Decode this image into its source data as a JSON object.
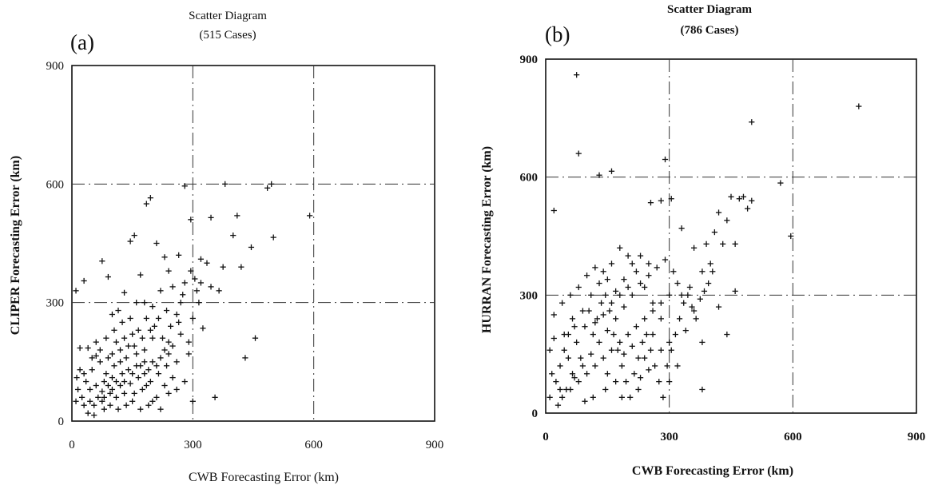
{
  "chart_data": [
    {
      "type": "scatter",
      "panel_label": "(a)",
      "title": "Scatter Diagram",
      "subtitle": "(515 Cases)",
      "xlabel": "CWB Forecasting Error (km)",
      "ylabel": "CLIPER Forecasting Error (km)",
      "xlim": [
        0,
        900
      ],
      "ylim": [
        0,
        900
      ],
      "xticks": [
        "0",
        "300",
        "600",
        "900"
      ],
      "yticks": [
        "0",
        "300",
        "600",
        "900"
      ],
      "reference_lines": {
        "x": [
          300,
          600
        ],
        "y": [
          300,
          600
        ]
      },
      "grid": false,
      "points": [
        [
          10,
          330
        ],
        [
          30,
          355
        ],
        [
          20,
          185
        ],
        [
          40,
          185
        ],
        [
          60,
          165
        ],
        [
          75,
          405
        ],
        [
          90,
          365
        ],
        [
          100,
          270
        ],
        [
          115,
          280
        ],
        [
          130,
          325
        ],
        [
          145,
          455
        ],
        [
          155,
          470
        ],
        [
          170,
          370
        ],
        [
          185,
          550
        ],
        [
          195,
          565
        ],
        [
          210,
          450
        ],
        [
          230,
          415
        ],
        [
          265,
          420
        ],
        [
          280,
          595
        ],
        [
          295,
          510
        ],
        [
          305,
          360
        ],
        [
          320,
          410
        ],
        [
          335,
          400
        ],
        [
          345,
          515
        ],
        [
          365,
          330
        ],
        [
          375,
          390
        ],
        [
          380,
          600
        ],
        [
          400,
          470
        ],
        [
          410,
          520
        ],
        [
          420,
          390
        ],
        [
          430,
          160
        ],
        [
          445,
          440
        ],
        [
          455,
          210
        ],
        [
          485,
          590
        ],
        [
          495,
          600
        ],
        [
          500,
          465
        ],
        [
          590,
          520
        ],
        [
          355,
          60
        ],
        [
          310,
          330
        ],
        [
          250,
          340
        ],
        [
          270,
          300
        ],
        [
          240,
          380
        ],
        [
          280,
          350
        ],
        [
          265,
          250
        ],
        [
          300,
          260
        ],
        [
          320,
          350
        ],
        [
          260,
          270
        ],
        [
          240,
          200
        ],
        [
          290,
          200
        ],
        [
          325,
          235
        ],
        [
          315,
          300
        ],
        [
          295,
          380
        ],
        [
          275,
          320
        ],
        [
          345,
          340
        ],
        [
          220,
          330
        ],
        [
          200,
          290
        ],
        [
          180,
          300
        ],
        [
          160,
          300
        ],
        [
          200,
          210
        ],
        [
          180,
          180
        ],
        [
          150,
          220
        ],
        [
          130,
          210
        ],
        [
          110,
          200
        ],
        [
          90,
          160
        ],
        [
          70,
          150
        ],
        [
          50,
          130
        ],
        [
          30,
          120
        ],
        [
          15,
          80
        ],
        [
          10,
          50
        ],
        [
          25,
          60
        ],
        [
          40,
          20
        ],
        [
          55,
          40
        ],
        [
          60,
          90
        ],
        [
          80,
          100
        ],
        [
          100,
          110
        ],
        [
          120,
          90
        ],
        [
          140,
          130
        ],
        [
          160,
          140
        ],
        [
          180,
          120
        ],
        [
          200,
          150
        ],
        [
          220,
          160
        ],
        [
          240,
          170
        ],
        [
          260,
          150
        ],
        [
          280,
          100
        ],
        [
          300,
          50
        ],
        [
          250,
          110
        ],
        [
          230,
          90
        ],
        [
          210,
          60
        ],
        [
          190,
          40
        ],
        [
          170,
          30
        ],
        [
          150,
          50
        ],
        [
          130,
          70
        ],
        [
          110,
          60
        ],
        [
          95,
          40
        ],
        [
          80,
          30
        ],
        [
          65,
          60
        ],
        [
          45,
          80
        ],
        [
          35,
          100
        ],
        [
          20,
          130
        ],
        [
          12,
          110
        ],
        [
          135,
          160
        ],
        [
          155,
          190
        ],
        [
          175,
          210
        ],
        [
          195,
          230
        ],
        [
          215,
          260
        ],
        [
          235,
          280
        ],
        [
          125,
          250
        ],
        [
          105,
          230
        ],
        [
          85,
          210
        ],
        [
          145,
          260
        ],
        [
          165,
          230
        ],
        [
          185,
          260
        ],
        [
          205,
          240
        ],
        [
          225,
          210
        ],
        [
          245,
          240
        ],
        [
          185,
          90
        ],
        [
          165,
          110
        ],
        [
          145,
          95
        ],
        [
          125,
          120
        ],
        [
          105,
          140
        ],
        [
          85,
          120
        ],
        [
          75,
          75
        ],
        [
          95,
          70
        ],
        [
          115,
          30
        ],
        [
          135,
          40
        ],
        [
          155,
          70
        ],
        [
          175,
          80
        ],
        [
          195,
          100
        ],
        [
          215,
          120
        ],
        [
          235,
          140
        ],
        [
          250,
          190
        ],
        [
          270,
          220
        ],
        [
          290,
          170
        ],
        [
          200,
          50
        ],
        [
          220,
          30
        ],
        [
          240,
          70
        ],
        [
          260,
          80
        ],
        [
          120,
          180
        ],
        [
          140,
          190
        ],
        [
          160,
          170
        ],
        [
          180,
          150
        ],
        [
          100,
          170
        ],
        [
          60,
          200
        ],
        [
          70,
          180
        ],
        [
          50,
          160
        ],
        [
          45,
          50
        ],
        [
          30,
          40
        ],
        [
          55,
          15
        ],
        [
          75,
          50
        ],
        [
          90,
          90
        ],
        [
          110,
          100
        ],
        [
          130,
          100
        ],
        [
          150,
          120
        ],
        [
          170,
          140
        ],
        [
          190,
          130
        ],
        [
          210,
          140
        ],
        [
          230,
          180
        ],
        [
          120,
          150
        ],
        [
          100,
          80
        ],
        [
          80,
          60
        ]
      ]
    },
    {
      "type": "scatter",
      "panel_label": "(b)",
      "title": "Scatter Diagram",
      "subtitle": "(786 Cases)",
      "xlabel": "CWB Forecasting Error (km)",
      "ylabel": "HURRAN Forecasting Error (km)",
      "xlim": [
        0,
        900
      ],
      "ylim": [
        0,
        900
      ],
      "xticks": [
        "0",
        "300",
        "600",
        "900"
      ],
      "yticks": [
        "0",
        "300",
        "600",
        "900"
      ],
      "reference_lines": {
        "x": [
          300,
          600
        ],
        "y": [
          300,
          600
        ]
      },
      "grid": false,
      "points": [
        [
          75,
          860
        ],
        [
          80,
          660
        ],
        [
          130,
          605
        ],
        [
          160,
          615
        ],
        [
          290,
          645
        ],
        [
          500,
          740
        ],
        [
          760,
          780
        ],
        [
          20,
          515
        ],
        [
          255,
          535
        ],
        [
          280,
          540
        ],
        [
          305,
          545
        ],
        [
          330,
          470
        ],
        [
          360,
          420
        ],
        [
          390,
          430
        ],
        [
          410,
          460
        ],
        [
          420,
          510
        ],
        [
          440,
          490
        ],
        [
          450,
          550
        ],
        [
          470,
          545
        ],
        [
          480,
          550
        ],
        [
          490,
          520
        ],
        [
          500,
          540
        ],
        [
          570,
          585
        ],
        [
          595,
          450
        ],
        [
          460,
          430
        ],
        [
          430,
          430
        ],
        [
          400,
          380
        ],
        [
          380,
          360
        ],
        [
          350,
          320
        ],
        [
          330,
          300
        ],
        [
          340,
          210
        ],
        [
          360,
          260
        ],
        [
          380,
          180
        ],
        [
          420,
          270
        ],
        [
          440,
          200
        ],
        [
          460,
          310
        ],
        [
          380,
          60
        ],
        [
          300,
          180
        ],
        [
          280,
          240
        ],
        [
          260,
          280
        ],
        [
          240,
          320
        ],
        [
          220,
          360
        ],
        [
          200,
          400
        ],
        [
          180,
          420
        ],
        [
          160,
          380
        ],
        [
          140,
          360
        ],
        [
          120,
          370
        ],
        [
          100,
          350
        ],
        [
          80,
          320
        ],
        [
          60,
          300
        ],
        [
          40,
          280
        ],
        [
          20,
          250
        ],
        [
          10,
          160
        ],
        [
          15,
          100
        ],
        [
          10,
          40
        ],
        [
          30,
          20
        ],
        [
          50,
          60
        ],
        [
          70,
          90
        ],
        [
          90,
          120
        ],
        [
          110,
          150
        ],
        [
          130,
          180
        ],
        [
          150,
          210
        ],
        [
          170,
          240
        ],
        [
          190,
          270
        ],
        [
          210,
          300
        ],
        [
          230,
          330
        ],
        [
          250,
          350
        ],
        [
          270,
          370
        ],
        [
          290,
          390
        ],
        [
          310,
          360
        ],
        [
          320,
          330
        ],
        [
          300,
          300
        ],
        [
          280,
          280
        ],
        [
          260,
          260
        ],
        [
          240,
          240
        ],
        [
          220,
          220
        ],
        [
          200,
          200
        ],
        [
          180,
          180
        ],
        [
          160,
          160
        ],
        [
          140,
          140
        ],
        [
          120,
          120
        ],
        [
          100,
          100
        ],
        [
          80,
          80
        ],
        [
          60,
          60
        ],
        [
          40,
          40
        ],
        [
          25,
          80
        ],
        [
          35,
          120
        ],
        [
          45,
          160
        ],
        [
          55,
          200
        ],
        [
          65,
          240
        ],
        [
          75,
          180
        ],
        [
          85,
          140
        ],
        [
          95,
          220
        ],
        [
          105,
          260
        ],
        [
          115,
          200
        ],
        [
          125,
          240
        ],
        [
          135,
          280
        ],
        [
          145,
          300
        ],
        [
          155,
          260
        ],
        [
          165,
          200
        ],
        [
          175,
          160
        ],
        [
          185,
          120
        ],
        [
          195,
          80
        ],
        [
          205,
          40
        ],
        [
          215,
          100
        ],
        [
          225,
          140
        ],
        [
          235,
          180
        ],
        [
          245,
          200
        ],
        [
          255,
          160
        ],
        [
          265,
          120
        ],
        [
          275,
          80
        ],
        [
          285,
          40
        ],
        [
          295,
          120
        ],
        [
          305,
          160
        ],
        [
          315,
          200
        ],
        [
          325,
          240
        ],
        [
          335,
          280
        ],
        [
          345,
          300
        ],
        [
          355,
          270
        ],
        [
          365,
          240
        ],
        [
          375,
          290
        ],
        [
          385,
          310
        ],
        [
          395,
          330
        ],
        [
          405,
          360
        ],
        [
          225,
          60
        ],
        [
          185,
          40
        ],
        [
          145,
          60
        ],
        [
          115,
          40
        ],
        [
          95,
          30
        ],
        [
          65,
          100
        ],
        [
          55,
          140
        ],
        [
          45,
          200
        ],
        [
          35,
          60
        ],
        [
          20,
          190
        ],
        [
          150,
          100
        ],
        [
          170,
          80
        ],
        [
          190,
          150
        ],
        [
          210,
          170
        ],
        [
          230,
          90
        ],
        [
          250,
          110
        ],
        [
          110,
          300
        ],
        [
          90,
          260
        ],
        [
          70,
          220
        ],
        [
          130,
          330
        ],
        [
          150,
          340
        ],
        [
          170,
          310
        ],
        [
          190,
          340
        ],
        [
          210,
          380
        ],
        [
          230,
          400
        ],
        [
          250,
          380
        ],
        [
          120,
          230
        ],
        [
          140,
          250
        ],
        [
          160,
          280
        ],
        [
          180,
          300
        ],
        [
          200,
          320
        ],
        [
          260,
          200
        ],
        [
          280,
          160
        ],
        [
          300,
          80
        ],
        [
          320,
          120
        ],
        [
          240,
          140
        ]
      ]
    }
  ]
}
